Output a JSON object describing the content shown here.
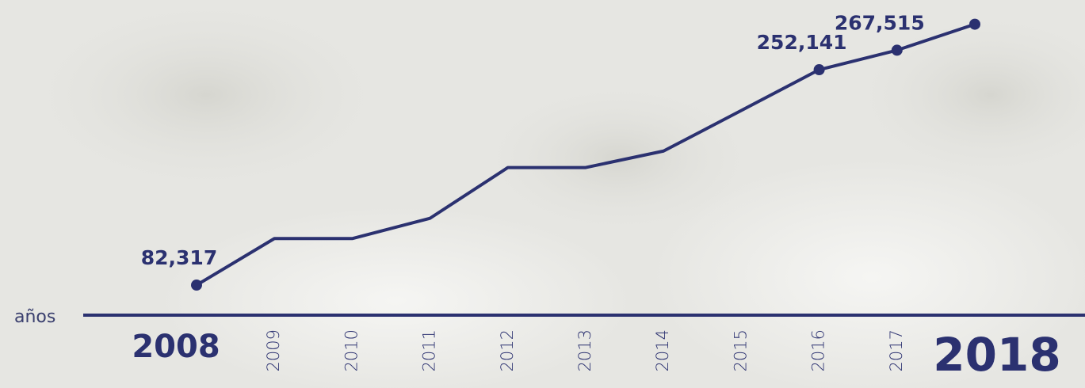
{
  "chart_data": {
    "type": "line",
    "x_label": "años",
    "categories": [
      "2008",
      "2009",
      "2010",
      "2011",
      "2012",
      "2013",
      "2014",
      "2015",
      "2016",
      "2017",
      "2018"
    ],
    "series": [
      {
        "name": null,
        "color": "#2b3170",
        "values": [
          82317,
          119000,
          119000,
          135000,
          175000,
          175000,
          188000,
          220000,
          252141,
          267515,
          288000
        ],
        "value_labels": [
          "82,317",
          null,
          null,
          null,
          null,
          null,
          null,
          null,
          "252,141",
          "267,515",
          null
        ]
      }
    ],
    "ylim": [
      58600,
      307100
    ]
  }
}
